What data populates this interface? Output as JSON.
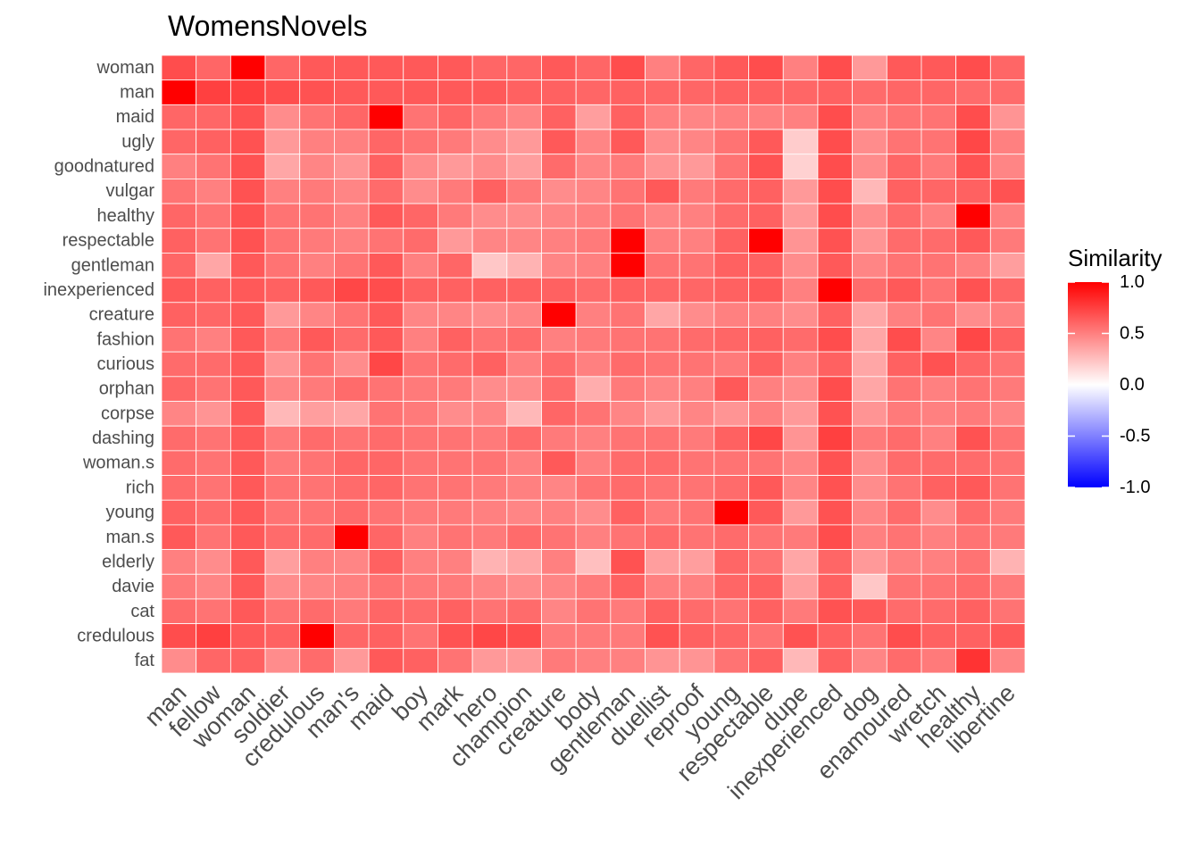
{
  "chart_data": {
    "type": "heatmap",
    "title": "WomensNovels",
    "rows": [
      "woman",
      "man",
      "maid",
      "ugly",
      "goodnatured",
      "vulgar",
      "healthy",
      "respectable",
      "gentleman",
      "inexperienced",
      "creature",
      "fashion",
      "curious",
      "orphan",
      "corpse",
      "dashing",
      "woman.s",
      "rich",
      "young",
      "man.s",
      "elderly",
      "davie",
      "cat",
      "credulous",
      "fat"
    ],
    "columns": [
      "man",
      "fellow",
      "woman",
      "soldier",
      "credulous",
      "man's",
      "maid",
      "boy",
      "mark",
      "hero",
      "champion",
      "creature",
      "body",
      "gentleman",
      "duellist",
      "reproof",
      "young",
      "respectable",
      "dupe",
      "inexperienced",
      "dog",
      "enamoured",
      "wretch",
      "healthy",
      "libertine"
    ],
    "values": [
      [
        0.7,
        0.6,
        1.0,
        0.6,
        0.65,
        0.65,
        0.65,
        0.65,
        0.65,
        0.6,
        0.6,
        0.65,
        0.6,
        0.7,
        0.5,
        0.6,
        0.65,
        0.7,
        0.5,
        0.7,
        0.4,
        0.65,
        0.65,
        0.7,
        0.6
      ],
      [
        1.0,
        0.75,
        0.75,
        0.7,
        0.68,
        0.65,
        0.65,
        0.65,
        0.65,
        0.65,
        0.62,
        0.62,
        0.6,
        0.62,
        0.6,
        0.6,
        0.62,
        0.62,
        0.6,
        0.62,
        0.58,
        0.6,
        0.6,
        0.58,
        0.58
      ],
      [
        0.6,
        0.6,
        0.68,
        0.45,
        0.55,
        0.6,
        1.0,
        0.55,
        0.6,
        0.52,
        0.48,
        0.62,
        0.38,
        0.62,
        0.5,
        0.48,
        0.5,
        0.5,
        0.5,
        0.7,
        0.5,
        0.55,
        0.55,
        0.7,
        0.42
      ],
      [
        0.6,
        0.62,
        0.68,
        0.4,
        0.5,
        0.5,
        0.6,
        0.55,
        0.52,
        0.45,
        0.4,
        0.65,
        0.48,
        0.65,
        0.45,
        0.48,
        0.55,
        0.65,
        0.2,
        0.7,
        0.45,
        0.55,
        0.55,
        0.72,
        0.5
      ],
      [
        0.5,
        0.55,
        0.68,
        0.35,
        0.48,
        0.42,
        0.62,
        0.45,
        0.4,
        0.45,
        0.38,
        0.58,
        0.48,
        0.52,
        0.42,
        0.4,
        0.55,
        0.68,
        0.18,
        0.7,
        0.45,
        0.6,
        0.52,
        0.68,
        0.48
      ],
      [
        0.55,
        0.5,
        0.68,
        0.5,
        0.52,
        0.48,
        0.58,
        0.45,
        0.52,
        0.62,
        0.52,
        0.45,
        0.48,
        0.55,
        0.65,
        0.52,
        0.58,
        0.62,
        0.4,
        0.7,
        0.28,
        0.62,
        0.6,
        0.62,
        0.68
      ],
      [
        0.6,
        0.55,
        0.68,
        0.55,
        0.55,
        0.5,
        0.65,
        0.6,
        0.52,
        0.45,
        0.45,
        0.48,
        0.5,
        0.55,
        0.48,
        0.5,
        0.58,
        0.62,
        0.4,
        0.7,
        0.45,
        0.58,
        0.5,
        1.0,
        0.5
      ],
      [
        0.62,
        0.55,
        0.68,
        0.55,
        0.52,
        0.5,
        0.55,
        0.58,
        0.4,
        0.48,
        0.48,
        0.5,
        0.52,
        1.0,
        0.5,
        0.5,
        0.62,
        1.0,
        0.42,
        0.68,
        0.42,
        0.58,
        0.58,
        0.65,
        0.52
      ],
      [
        0.6,
        0.35,
        0.65,
        0.55,
        0.5,
        0.55,
        0.65,
        0.5,
        0.6,
        0.22,
        0.3,
        0.48,
        0.5,
        1.0,
        0.55,
        0.55,
        0.62,
        0.62,
        0.45,
        0.65,
        0.48,
        0.55,
        0.55,
        0.5,
        0.38
      ],
      [
        0.65,
        0.62,
        0.65,
        0.62,
        0.65,
        0.72,
        0.7,
        0.62,
        0.62,
        0.62,
        0.62,
        0.62,
        0.58,
        0.62,
        0.6,
        0.6,
        0.62,
        0.65,
        0.5,
        1.0,
        0.58,
        0.65,
        0.55,
        0.68,
        0.6
      ],
      [
        0.62,
        0.6,
        0.65,
        0.4,
        0.48,
        0.55,
        0.65,
        0.48,
        0.48,
        0.45,
        0.48,
        1.0,
        0.5,
        0.55,
        0.35,
        0.45,
        0.5,
        0.5,
        0.45,
        0.62,
        0.35,
        0.5,
        0.55,
        0.45,
        0.5
      ],
      [
        0.55,
        0.5,
        0.65,
        0.52,
        0.65,
        0.58,
        0.65,
        0.5,
        0.62,
        0.55,
        0.58,
        0.5,
        0.52,
        0.55,
        0.55,
        0.58,
        0.6,
        0.62,
        0.58,
        0.7,
        0.35,
        0.7,
        0.48,
        0.72,
        0.62
      ],
      [
        0.58,
        0.58,
        0.65,
        0.42,
        0.55,
        0.45,
        0.72,
        0.55,
        0.58,
        0.62,
        0.5,
        0.58,
        0.5,
        0.58,
        0.55,
        0.55,
        0.52,
        0.62,
        0.5,
        0.62,
        0.35,
        0.62,
        0.68,
        0.6,
        0.55
      ],
      [
        0.6,
        0.55,
        0.65,
        0.48,
        0.52,
        0.58,
        0.55,
        0.52,
        0.52,
        0.45,
        0.45,
        0.58,
        0.32,
        0.52,
        0.48,
        0.5,
        0.65,
        0.5,
        0.45,
        0.7,
        0.35,
        0.55,
        0.5,
        0.55,
        0.52
      ],
      [
        0.48,
        0.42,
        0.65,
        0.28,
        0.38,
        0.35,
        0.55,
        0.52,
        0.45,
        0.48,
        0.28,
        0.6,
        0.55,
        0.48,
        0.4,
        0.48,
        0.42,
        0.5,
        0.4,
        0.68,
        0.42,
        0.52,
        0.5,
        0.52,
        0.48
      ],
      [
        0.58,
        0.55,
        0.65,
        0.52,
        0.58,
        0.55,
        0.58,
        0.55,
        0.55,
        0.52,
        0.58,
        0.52,
        0.5,
        0.55,
        0.55,
        0.52,
        0.62,
        0.72,
        0.42,
        0.75,
        0.52,
        0.58,
        0.5,
        0.68,
        0.55
      ],
      [
        0.58,
        0.55,
        0.65,
        0.52,
        0.55,
        0.6,
        0.6,
        0.55,
        0.55,
        0.55,
        0.5,
        0.65,
        0.5,
        0.58,
        0.58,
        0.55,
        0.55,
        0.55,
        0.48,
        0.68,
        0.45,
        0.58,
        0.58,
        0.58,
        0.55
      ],
      [
        0.58,
        0.55,
        0.65,
        0.55,
        0.55,
        0.58,
        0.6,
        0.55,
        0.55,
        0.52,
        0.5,
        0.48,
        0.55,
        0.58,
        0.55,
        0.55,
        0.58,
        0.65,
        0.48,
        0.68,
        0.45,
        0.55,
        0.62,
        0.65,
        0.55
      ],
      [
        0.62,
        0.58,
        0.65,
        0.55,
        0.55,
        0.58,
        0.55,
        0.52,
        0.52,
        0.5,
        0.48,
        0.5,
        0.45,
        0.62,
        0.52,
        0.55,
        1.0,
        0.65,
        0.4,
        0.68,
        0.48,
        0.58,
        0.45,
        0.58,
        0.52
      ],
      [
        0.65,
        0.55,
        0.65,
        0.58,
        0.58,
        1.0,
        0.6,
        0.5,
        0.55,
        0.52,
        0.58,
        0.55,
        0.5,
        0.55,
        0.58,
        0.55,
        0.58,
        0.55,
        0.52,
        0.7,
        0.5,
        0.55,
        0.5,
        0.55,
        0.52
      ],
      [
        0.5,
        0.45,
        0.65,
        0.38,
        0.5,
        0.48,
        0.62,
        0.5,
        0.5,
        0.3,
        0.35,
        0.5,
        0.25,
        0.68,
        0.38,
        0.38,
        0.6,
        0.55,
        0.35,
        0.6,
        0.4,
        0.5,
        0.5,
        0.55,
        0.3
      ],
      [
        0.52,
        0.48,
        0.65,
        0.45,
        0.48,
        0.5,
        0.55,
        0.52,
        0.52,
        0.48,
        0.45,
        0.48,
        0.52,
        0.62,
        0.5,
        0.5,
        0.6,
        0.62,
        0.38,
        0.62,
        0.22,
        0.55,
        0.55,
        0.58,
        0.52
      ],
      [
        0.58,
        0.55,
        0.65,
        0.55,
        0.58,
        0.52,
        0.6,
        0.58,
        0.62,
        0.55,
        0.58,
        0.48,
        0.55,
        0.52,
        0.62,
        0.58,
        0.55,
        0.62,
        0.52,
        0.68,
        0.65,
        0.58,
        0.58,
        0.62,
        0.55
      ],
      [
        0.7,
        0.75,
        0.65,
        0.62,
        1.0,
        0.6,
        0.62,
        0.55,
        0.68,
        0.72,
        0.7,
        0.52,
        0.52,
        0.52,
        0.68,
        0.62,
        0.6,
        0.55,
        0.68,
        0.62,
        0.55,
        0.7,
        0.62,
        0.62,
        0.65
      ],
      [
        0.45,
        0.6,
        0.62,
        0.45,
        0.58,
        0.4,
        0.65,
        0.62,
        0.55,
        0.4,
        0.4,
        0.52,
        0.5,
        0.5,
        0.42,
        0.42,
        0.55,
        0.62,
        0.28,
        0.62,
        0.48,
        0.58,
        0.52,
        0.8,
        0.48
      ]
    ],
    "legend": {
      "title": "Similarity",
      "ticks": [
        1.0,
        0.5,
        0.0,
        -0.5,
        -1.0
      ],
      "tick_labels": [
        "1.0",
        "0.5",
        "0.0",
        "-0.5",
        "-1.0"
      ],
      "range": [
        -1,
        1
      ],
      "placement": "right"
    },
    "colors": {
      "low": "#0000ff",
      "mid": "#ffffff",
      "high": "#ff0000"
    },
    "grid": false
  }
}
